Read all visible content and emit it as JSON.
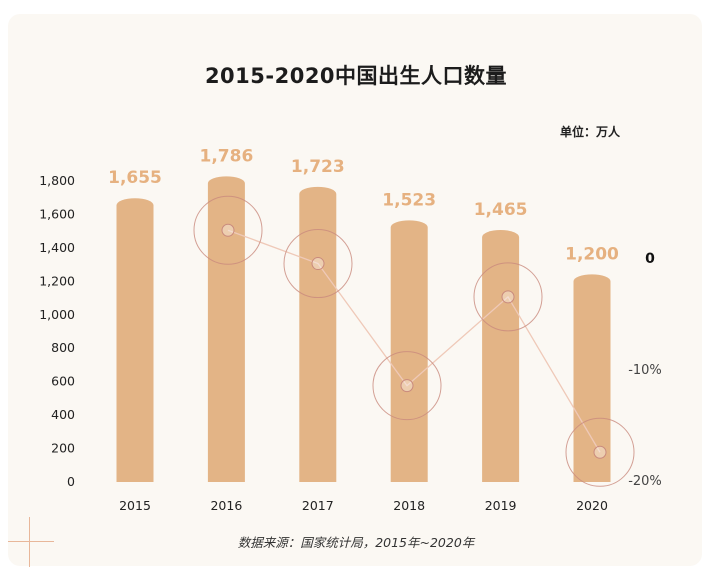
{
  "title": "2015-2020中国出生人口数量",
  "unit_label": "单位：万人",
  "source": "数据来源：国家统计局，2015年~2020年",
  "colors": {
    "bar": "#e3b486",
    "bar_cap": "#d9a575",
    "value_label": "#e6b180",
    "line": "#efc9b8",
    "circle": "#c98a7d",
    "axis_text": "#222222"
  },
  "chart_data": {
    "type": "bar",
    "title": "2015-2020中国出生人口数量",
    "categories": [
      "2015",
      "2016",
      "2017",
      "2018",
      "2019",
      "2020"
    ],
    "series": [
      {
        "values": [
          1655,
          1786,
          1723,
          1523,
          1465,
          1200
        ],
        "axis": "left"
      },
      {
        "values": [
          null,
          2.5,
          -0.5,
          -11.5,
          -3.5,
          -17.5
        ],
        "axis": "right",
        "type": "line",
        "unit": "%"
      }
    ],
    "value_labels": [
      "1,655",
      "1,786",
      "1,723",
      "1,523",
      "1,465",
      "1,200"
    ],
    "y_left": {
      "ylim": [
        0,
        1800
      ],
      "ticks": [
        "0",
        "200",
        "400",
        "600",
        "800",
        "1,000",
        "1,200",
        "1,400",
        "1,600",
        "1,800"
      ]
    },
    "y_right": {
      "ticks": [
        "0",
        "-10%",
        "-20%"
      ],
      "tick_values": [
        0,
        -10,
        -20
      ]
    }
  }
}
